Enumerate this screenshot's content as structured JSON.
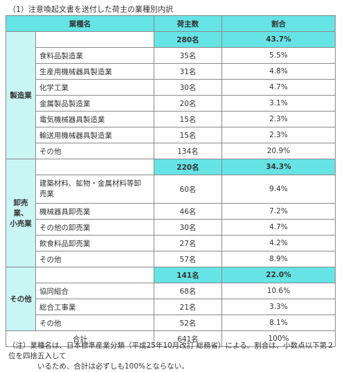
{
  "caption": "（1）注意喚起文書を送付した荷主の業種別内訳",
  "headers": {
    "industry": "業種名",
    "count": "荷主数",
    "ratio": "割合"
  },
  "groups": [
    {
      "label": "製造業",
      "subtotal": {
        "count": "280名",
        "ratio": "43.7%"
      },
      "rows": [
        {
          "name": "食料品製造業",
          "count": "35名",
          "ratio": "5.5%"
        },
        {
          "name": "生産用機械器具製造業",
          "count": "31名",
          "ratio": "4.8%"
        },
        {
          "name": "化学工業",
          "count": "30名",
          "ratio": "4.7%"
        },
        {
          "name": "金属製品製造業",
          "count": "20名",
          "ratio": "3.1%"
        },
        {
          "name": "電気機械器具製造業",
          "count": "15名",
          "ratio": "2.3%"
        },
        {
          "name": "輸送用機械器具製造業",
          "count": "15名",
          "ratio": "2.3%"
        },
        {
          "name": "その他",
          "count": "134名",
          "ratio": "20.9%"
        }
      ]
    },
    {
      "label_lines": [
        "卸売",
        "業、",
        "小売業"
      ],
      "subtotal": {
        "count": "220名",
        "ratio": "34.3%"
      },
      "rows": [
        {
          "name_lines": [
            "建築材料、鉱物・金属材料等卸",
            "売業"
          ],
          "count": "60名",
          "ratio": "9.4%"
        },
        {
          "name": "機械器具卸売業",
          "count": "46名",
          "ratio": "7.2%"
        },
        {
          "name": "その他の卸売業",
          "count": "30名",
          "ratio": "4.7%"
        },
        {
          "name": "飲食料品卸売業",
          "count": "27名",
          "ratio": "4.2%"
        },
        {
          "name": "その他",
          "count": "57名",
          "ratio": "8.9%"
        }
      ]
    },
    {
      "label": "その他",
      "subtotal": {
        "count": "141名",
        "ratio": "22.0%"
      },
      "rows": [
        {
          "name": "協同組合",
          "count": "68名",
          "ratio": "10.6%"
        },
        {
          "name": "総合工事業",
          "count": "21名",
          "ratio": "3.3%"
        },
        {
          "name": "その他",
          "count": "52名",
          "ratio": "8.1%"
        }
      ]
    }
  ],
  "total": {
    "label": "合計",
    "count": "641名",
    "ratio": "100%"
  },
  "note": {
    "line1": "（注）業種名は、日本標準産業分類（平成25年10月改訂 総務省）による。割合は、小数点以下第２位を四捨五入して",
    "line2": "いるため、合計は必ずしも100%とならない。"
  },
  "colors": {
    "header_bg": "#66e3e5",
    "group_bg": "#c9f5f5",
    "border": "#888888"
  }
}
